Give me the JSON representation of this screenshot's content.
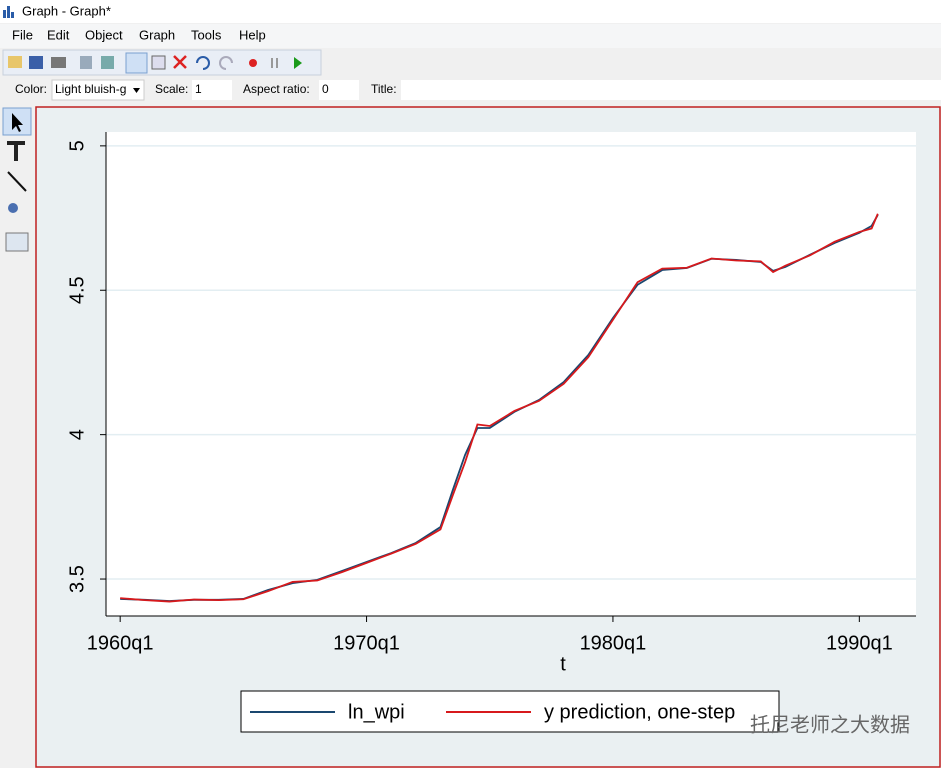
{
  "window": {
    "title": "Graph - Graph*"
  },
  "menu": [
    "File",
    "Edit",
    "Object",
    "Graph",
    "Tools",
    "Help"
  ],
  "properties": {
    "color_label": "Color:",
    "color_value": "Light bluish-g",
    "scale_label": "Scale:",
    "scale_value": "1",
    "aspect_label": "Aspect ratio:",
    "aspect_value": "0",
    "title_label": "Title:"
  },
  "watermark": "托尼老师之大数据",
  "chart_data": {
    "type": "line",
    "x_label": "t",
    "x": [
      0,
      4,
      8,
      12,
      16,
      20,
      24,
      28,
      32,
      36,
      40,
      44,
      48,
      52,
      54,
      56,
      58,
      60,
      64,
      68,
      72,
      76,
      80,
      84,
      88,
      92,
      96,
      100,
      104,
      106,
      108,
      112,
      116,
      120,
      122,
      123
    ],
    "series": [
      {
        "name": "ln_wpi",
        "color": "#1a476f",
        "values": [
          3.431,
          3.428,
          3.424,
          3.428,
          3.428,
          3.431,
          3.462,
          3.486,
          3.497,
          3.528,
          3.559,
          3.59,
          3.625,
          3.68,
          3.808,
          3.93,
          4.023,
          4.023,
          4.079,
          4.12,
          4.182,
          4.276,
          4.404,
          4.519,
          4.57,
          4.577,
          4.609,
          4.605,
          4.598,
          4.567,
          4.581,
          4.623,
          4.664,
          4.699,
          4.723,
          4.761
        ]
      },
      {
        "name": "y prediction, one-step",
        "color": "#d7191c",
        "values": [
          3.434,
          3.427,
          3.422,
          3.429,
          3.427,
          3.43,
          3.458,
          3.49,
          3.495,
          3.524,
          3.556,
          3.588,
          3.622,
          3.672,
          3.79,
          3.905,
          4.035,
          4.03,
          4.082,
          4.117,
          4.176,
          4.268,
          4.398,
          4.528,
          4.575,
          4.578,
          4.61,
          4.603,
          4.6,
          4.563,
          4.585,
          4.621,
          4.668,
          4.702,
          4.714,
          4.765
        ]
      }
    ],
    "xlim": [
      -2.3,
      129.2
    ],
    "ylim": [
      3.372,
      5.048
    ],
    "xticks": [
      {
        "value": 0,
        "label": "1960q1"
      },
      {
        "value": 40,
        "label": "1970q1"
      },
      {
        "value": 80,
        "label": "1980q1"
      },
      {
        "value": 120,
        "label": "1990q1"
      }
    ],
    "yticks": [
      3.5,
      4,
      4.5,
      5
    ],
    "grid": true,
    "legend": "bottom"
  }
}
